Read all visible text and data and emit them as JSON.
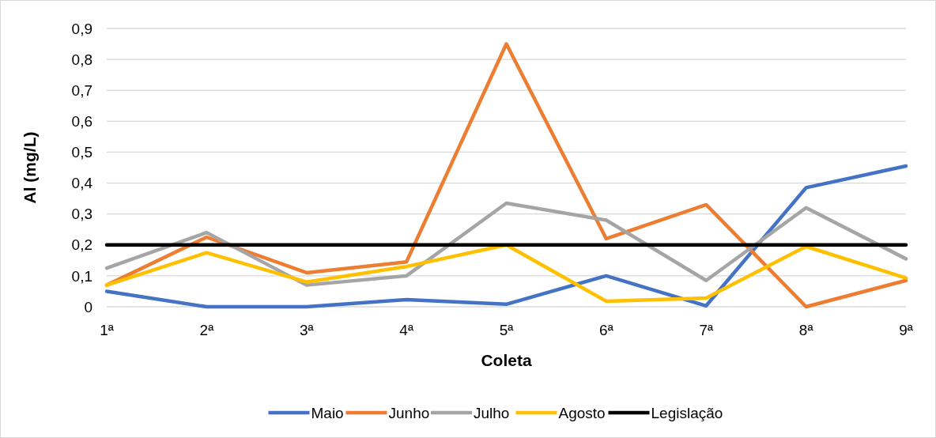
{
  "chart_data": {
    "type": "line",
    "xlabel": "Coleta",
    "ylabel": "Al (mg/L)",
    "categories": [
      "1ª",
      "2ª",
      "3ª",
      "4ª",
      "5ª",
      "6ª",
      "7ª",
      "8ª",
      "9ª"
    ],
    "series": [
      {
        "name": "Maio",
        "color": "#4472c4",
        "values": [
          0.05,
          0,
          0,
          0.023,
          0.008,
          0.1,
          0.003,
          0.385,
          0.455
        ]
      },
      {
        "name": "Junho",
        "color": "#ed7d31",
        "values": [
          0.07,
          0.225,
          0.11,
          0.145,
          0.85,
          0.22,
          0.33,
          0,
          0.085
        ]
      },
      {
        "name": "Julho",
        "color": "#a5a5a5",
        "values": [
          0.125,
          0.24,
          0.07,
          0.1,
          0.335,
          0.28,
          0.085,
          0.32,
          0.155
        ]
      },
      {
        "name": "Agosto",
        "color": "#ffc000",
        "values": [
          0.07,
          0.175,
          0.08,
          0.13,
          0.2,
          0.018,
          0.028,
          0.195,
          0.093
        ]
      },
      {
        "name": "Legislação",
        "color": "#000000",
        "values": [
          0.2,
          0.2,
          0.2,
          0.2,
          0.2,
          0.2,
          0.2,
          0.2,
          0.2
        ]
      }
    ],
    "ylim": [
      0,
      0.9
    ],
    "yticks": [
      0,
      {
        "value": 0.1,
        "label": "0,1"
      },
      {
        "value": 0.2,
        "label": "0,2"
      },
      {
        "value": 0.3,
        "label": "0,3"
      },
      {
        "value": 0.4,
        "label": "0,4"
      },
      {
        "value": 0.5,
        "label": "0,5"
      },
      {
        "value": 0.6,
        "label": "0,6"
      },
      {
        "value": 0.7,
        "label": "0,7"
      },
      {
        "value": 0.8,
        "label": "0,8"
      },
      {
        "value": 0.9,
        "label": "0,9"
      }
    ],
    "grid": "y",
    "legend": "bottom",
    "marker": "none",
    "line_style": "solid"
  }
}
